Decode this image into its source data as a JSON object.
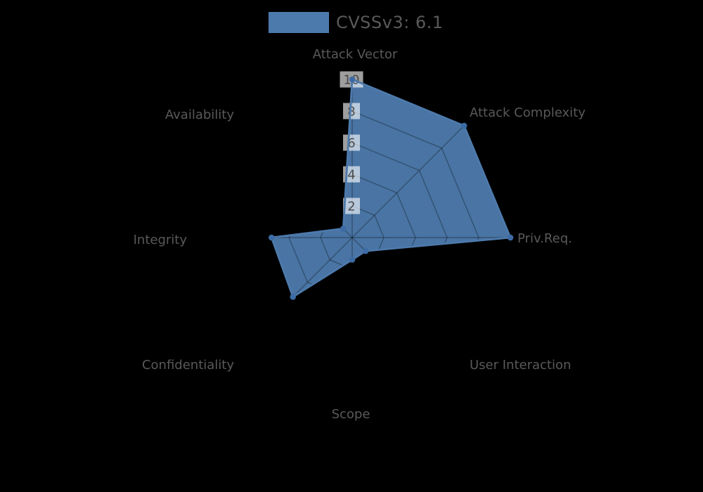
{
  "legend": {
    "label": "CVSSv3: 6.1",
    "swatch_color": "#4d7aac"
  },
  "chart_data": {
    "type": "radar",
    "title": "CVSSv3: 6.1",
    "categories": [
      "Attack Vector",
      "Attack Complexity",
      "Priv.Req.",
      "User Interaction",
      "Scope",
      "Confidentiality",
      "Integrity",
      "Availability"
    ],
    "series": [
      {
        "name": "CVSSv3: 6.1",
        "values": [
          10,
          10,
          10,
          1.2,
          1.4,
          5.3,
          5.1,
          0.8
        ]
      }
    ],
    "radial_ticks": [
      2,
      4,
      6,
      8,
      10
    ],
    "rlim": [
      0,
      10
    ],
    "grid": true,
    "legend_position": "top-center",
    "fill_color": "#4d7aac",
    "marker_color": "#3d6ba5",
    "grid_color": "#000000",
    "tick_box_color": "#ffffff",
    "tick_text_color": "#3f3f3f",
    "label_color": "#595959"
  }
}
